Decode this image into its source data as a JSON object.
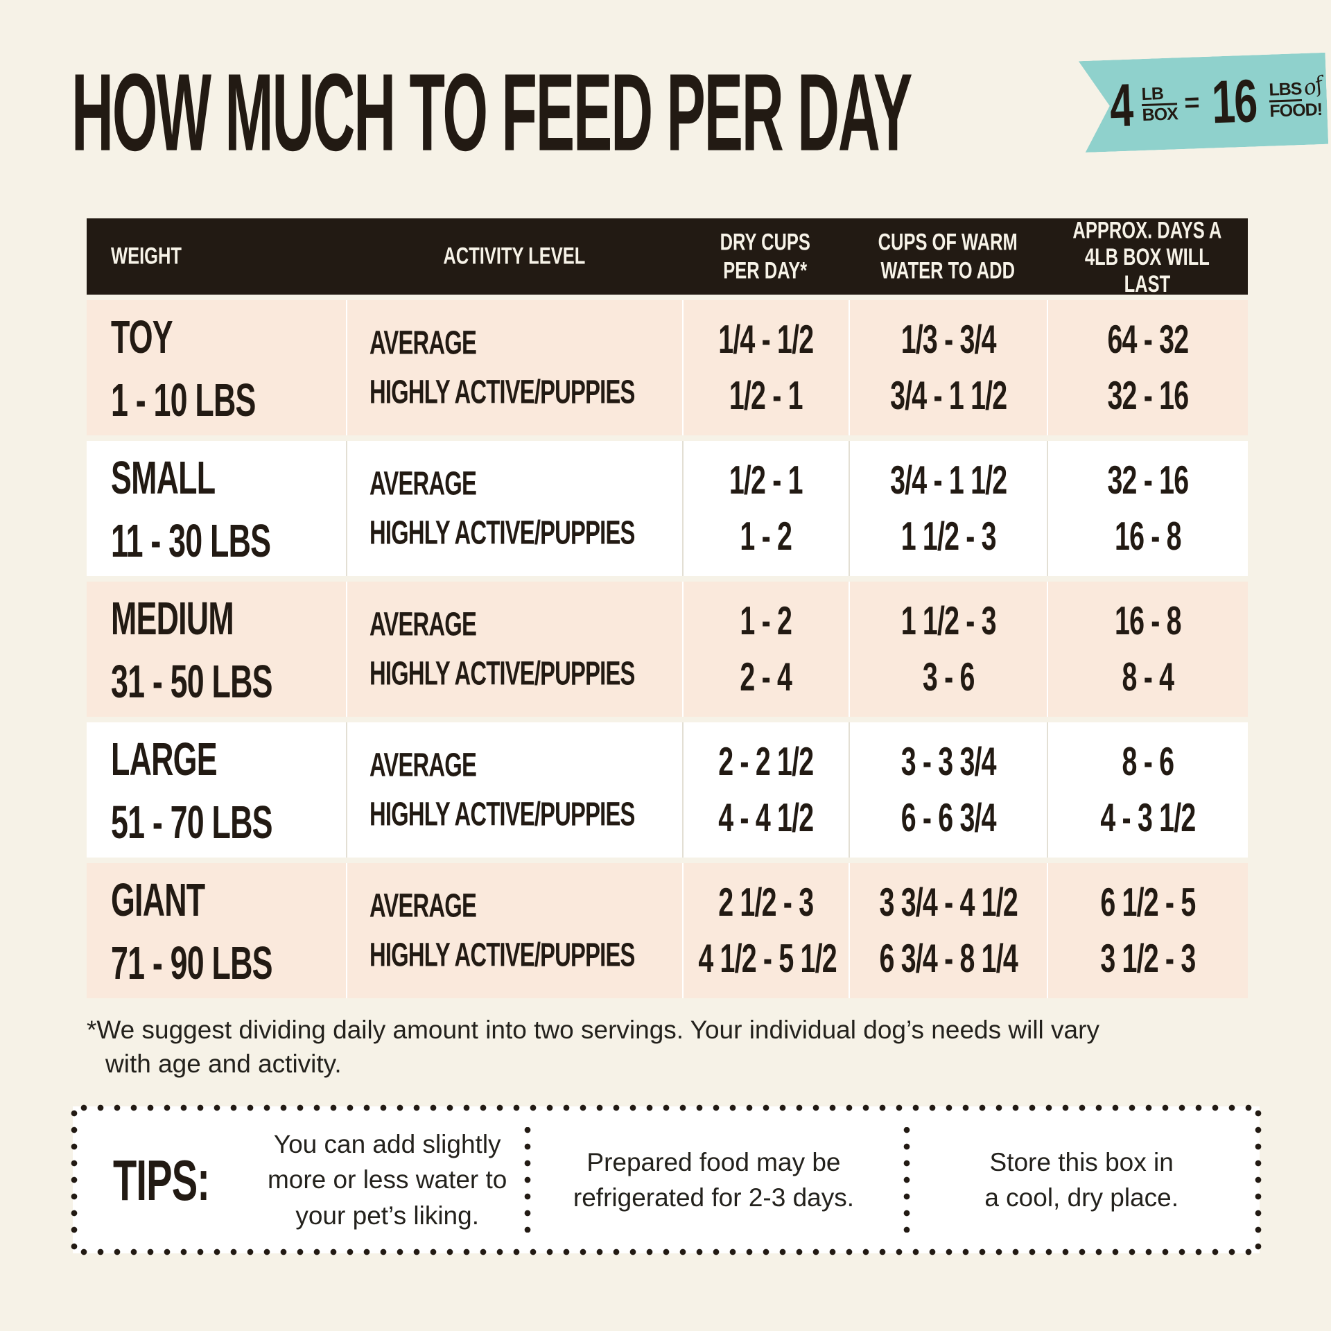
{
  "title": "HOW MUCH TO FEED PER DAY",
  "colors": {
    "page_background": "#F6F2E7",
    "header_bar": "#221A13",
    "row_peach": "#FAE9DC",
    "row_white": "#FFFFFF",
    "ribbon_teal": "#8FD1CC",
    "text_dark": "#221A13"
  },
  "badge": {
    "left_value": "4",
    "left_unit_top": "LB",
    "left_unit_bottom": "BOX",
    "equals": "=",
    "right_value": "16",
    "right_unit_top": "LBS",
    "right_unit_of": "of",
    "right_unit_bottom": "FOOD!"
  },
  "table": {
    "header": {
      "col1": "WEIGHT",
      "col2": "ACTIVITY LEVEL",
      "col3": [
        "DRY CUPS",
        "PER DAY*"
      ],
      "col4": [
        "CUPS OF WARM",
        "WATER TO ADD"
      ],
      "col5": [
        "APPROX. DAYS A",
        "4LB BOX WILL LAST"
      ]
    },
    "rows": [
      {
        "size": "TOY",
        "range": "1 - 10 LBS",
        "activity": [
          "AVERAGE",
          "HIGHLY ACTIVE/PUPPIES"
        ],
        "dry_cups": [
          "1/4 - 1/2",
          "1/2 - 1"
        ],
        "water_cups": [
          "1/3 - 3/4",
          "3/4 - 1 1/2"
        ],
        "box_days": [
          "64 - 32",
          "32 - 16"
        ]
      },
      {
        "size": "SMALL",
        "range": "11 - 30 LBS",
        "activity": [
          "AVERAGE",
          "HIGHLY ACTIVE/PUPPIES"
        ],
        "dry_cups": [
          "1/2 - 1",
          "1 - 2"
        ],
        "water_cups": [
          "3/4 - 1 1/2",
          "1 1/2 - 3"
        ],
        "box_days": [
          "32 - 16",
          "16 - 8"
        ]
      },
      {
        "size": "MEDIUM",
        "range": "31 - 50 LBS",
        "activity": [
          "AVERAGE",
          "HIGHLY ACTIVE/PUPPIES"
        ],
        "dry_cups": [
          "1 - 2",
          "2 - 4"
        ],
        "water_cups": [
          "1 1/2 - 3",
          "3 - 6"
        ],
        "box_days": [
          "16 - 8",
          "8 - 4"
        ]
      },
      {
        "size": "LARGE",
        "range": "51 - 70 LBS",
        "activity": [
          "AVERAGE",
          "HIGHLY ACTIVE/PUPPIES"
        ],
        "dry_cups": [
          "2 - 2 1/2",
          "4 - 4 1/2"
        ],
        "water_cups": [
          "3 - 3 3/4",
          "6 - 6 3/4"
        ],
        "box_days": [
          "8 - 6",
          "4 - 3 1/2"
        ]
      },
      {
        "size": "GIANT",
        "range": "71 - 90 LBS",
        "activity": [
          "AVERAGE",
          "HIGHLY ACTIVE/PUPPIES"
        ],
        "dry_cups": [
          "2 1/2 - 3",
          "4 1/2 - 5 1/2"
        ],
        "water_cups": [
          "3 3/4 - 4 1/2",
          "6 3/4 - 8 1/4"
        ],
        "box_days": [
          "6 1/2 - 5",
          "3 1/2 - 3"
        ]
      }
    ]
  },
  "footnote": {
    "lines": [
      "*We suggest dividing daily amount into two servings. Your individual dog’s needs will vary",
      "with age and activity."
    ]
  },
  "tips": {
    "label": "TIPS:",
    "items": [
      [
        "You can add slightly",
        "more or less water to",
        "your pet’s liking."
      ],
      [
        "Prepared food may be",
        "refrigerated for 2-3 days."
      ],
      [
        "Store this box in",
        "a cool, dry place."
      ]
    ]
  }
}
